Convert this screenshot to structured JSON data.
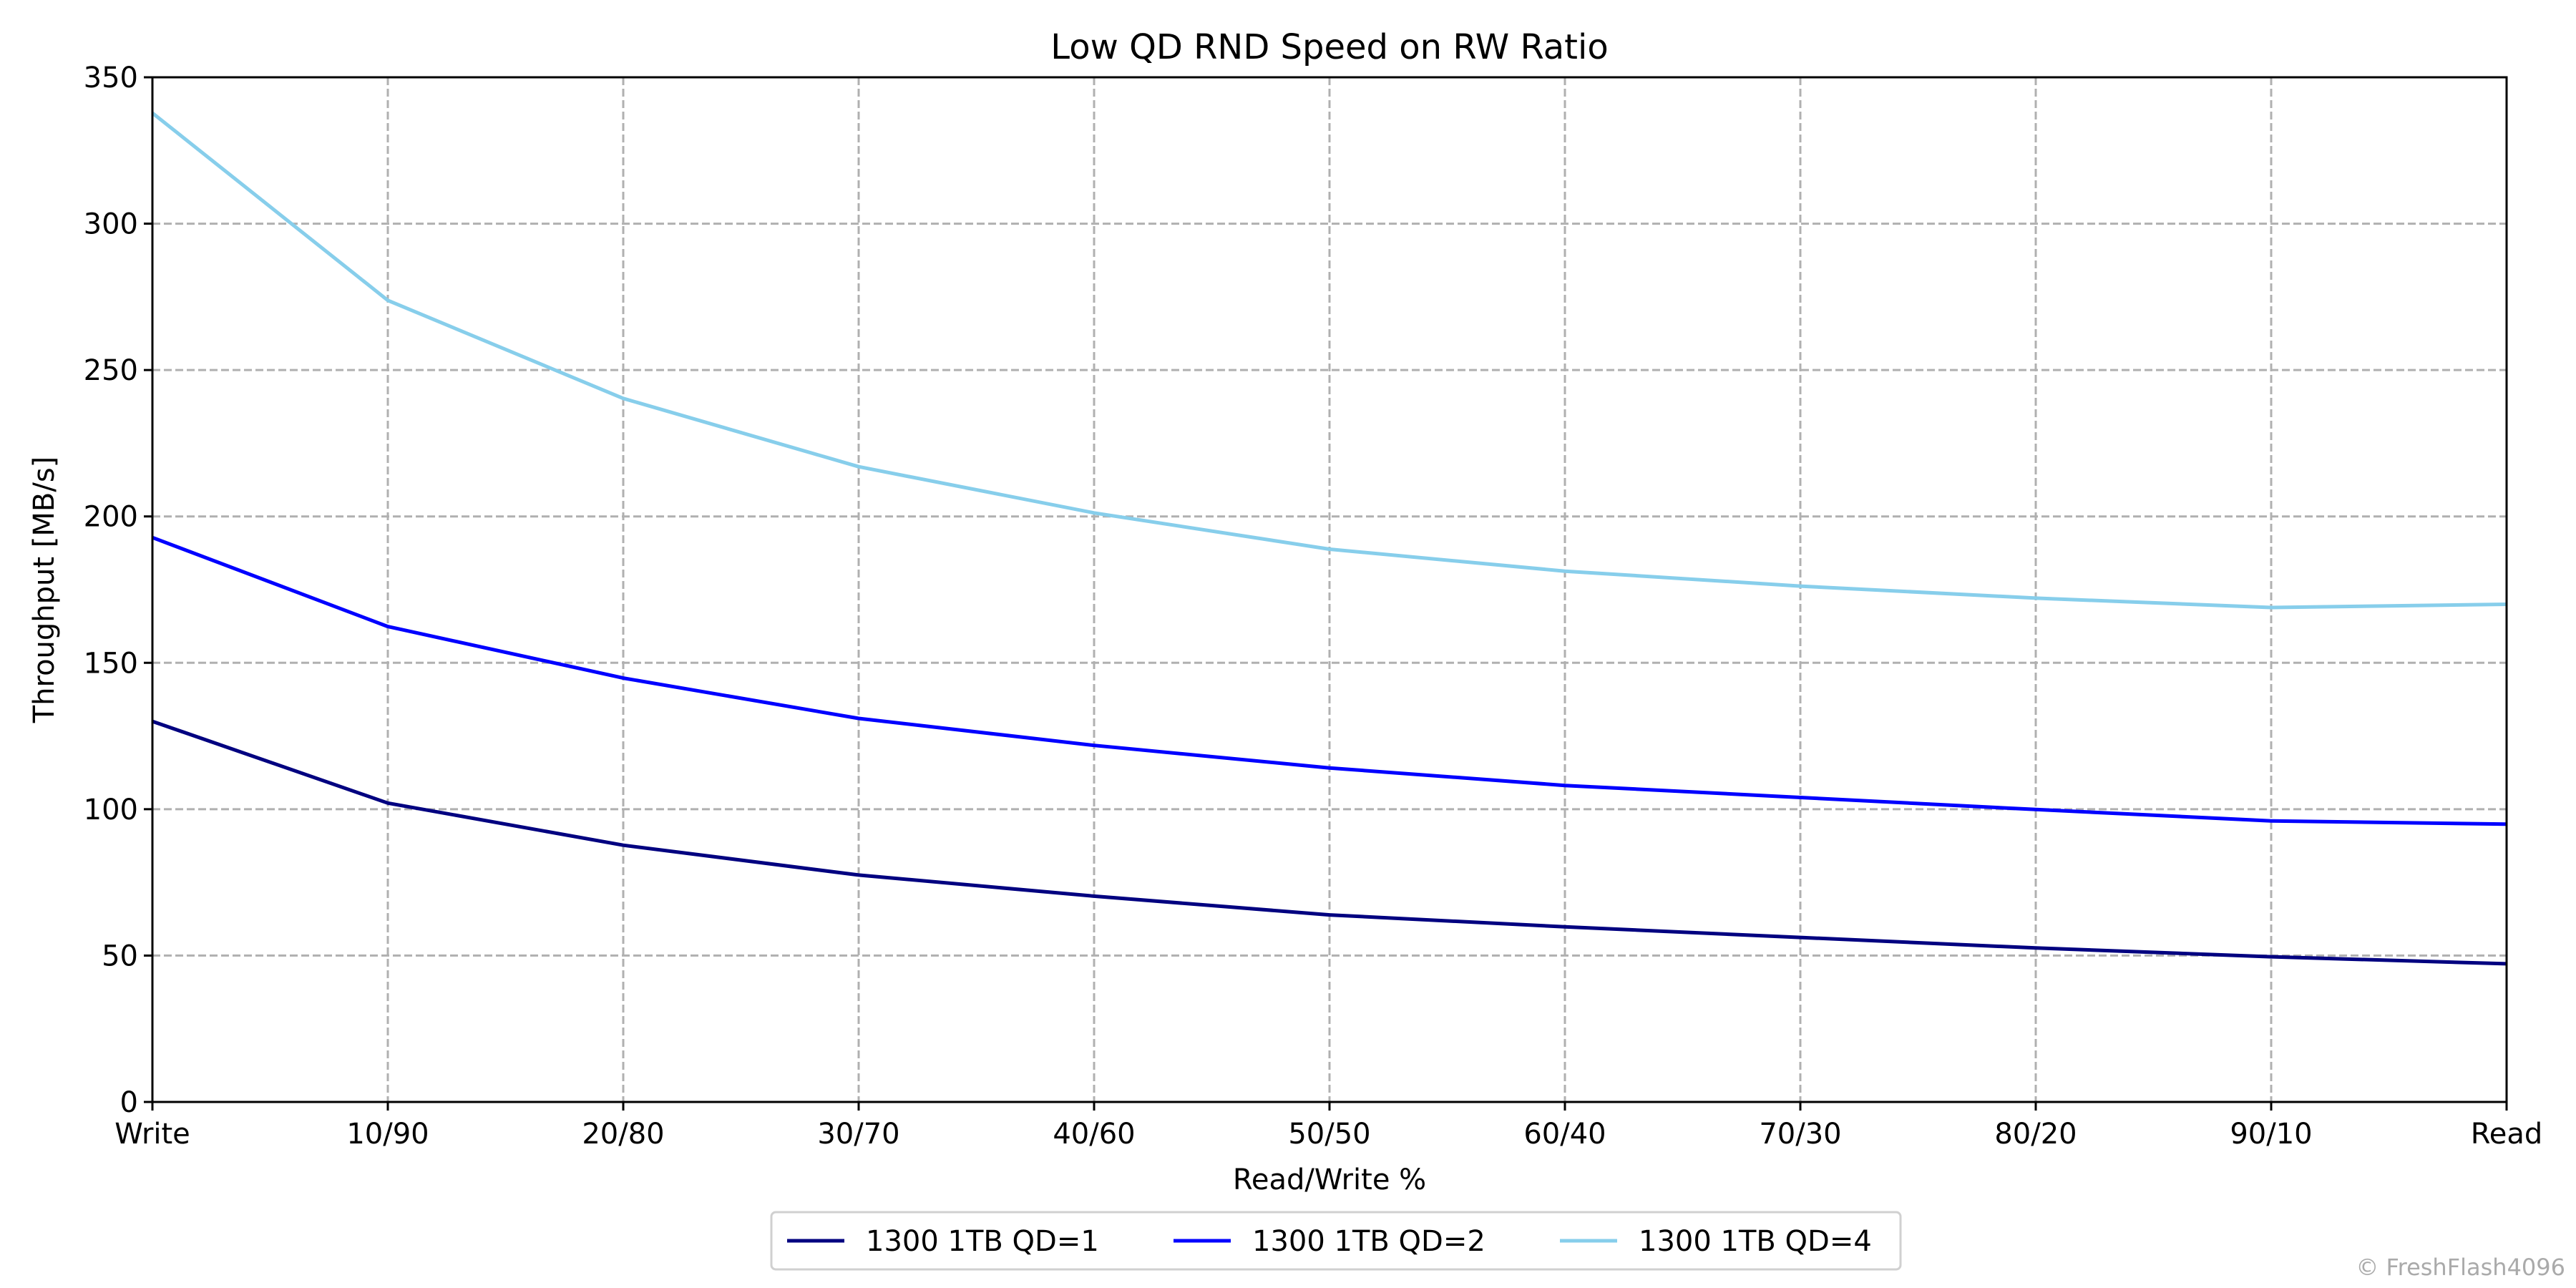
{
  "chart_data": {
    "type": "line",
    "title": "Low QD RND Speed on RW Ratio",
    "xlabel": "Read/Write %",
    "ylabel": "Throughput [MB/s]",
    "categories": [
      "Write",
      "10/90",
      "20/80",
      "30/70",
      "40/60",
      "50/50",
      "60/40",
      "70/30",
      "80/20",
      "90/10",
      "Read"
    ],
    "ylim": [
      0,
      350
    ],
    "yticks": [
      0,
      50,
      100,
      150,
      200,
      250,
      300,
      350
    ],
    "grid": true,
    "legend_position": "bottom-center",
    "series": [
      {
        "name": "1300 1TB QD=1",
        "color": "#000080",
        "values": [
          130.0,
          102.1,
          87.7,
          77.5,
          70.3,
          63.9,
          59.8,
          56.2,
          52.6,
          49.6,
          47.2
        ]
      },
      {
        "name": "1300 1TB QD=2",
        "color": "#0000ff",
        "values": [
          192.8,
          162.4,
          144.8,
          131.0,
          121.8,
          114.1,
          108.1,
          104.0,
          99.9,
          96.0,
          94.9
        ]
      },
      {
        "name": "1300 1TB QD=4",
        "color": "#87ceeb",
        "values": [
          337.8,
          273.8,
          240.3,
          217.0,
          201.2,
          188.8,
          181.3,
          176.2,
          172.1,
          168.9,
          170.0
        ]
      }
    ]
  },
  "watermark": "© FreshFlash4096"
}
